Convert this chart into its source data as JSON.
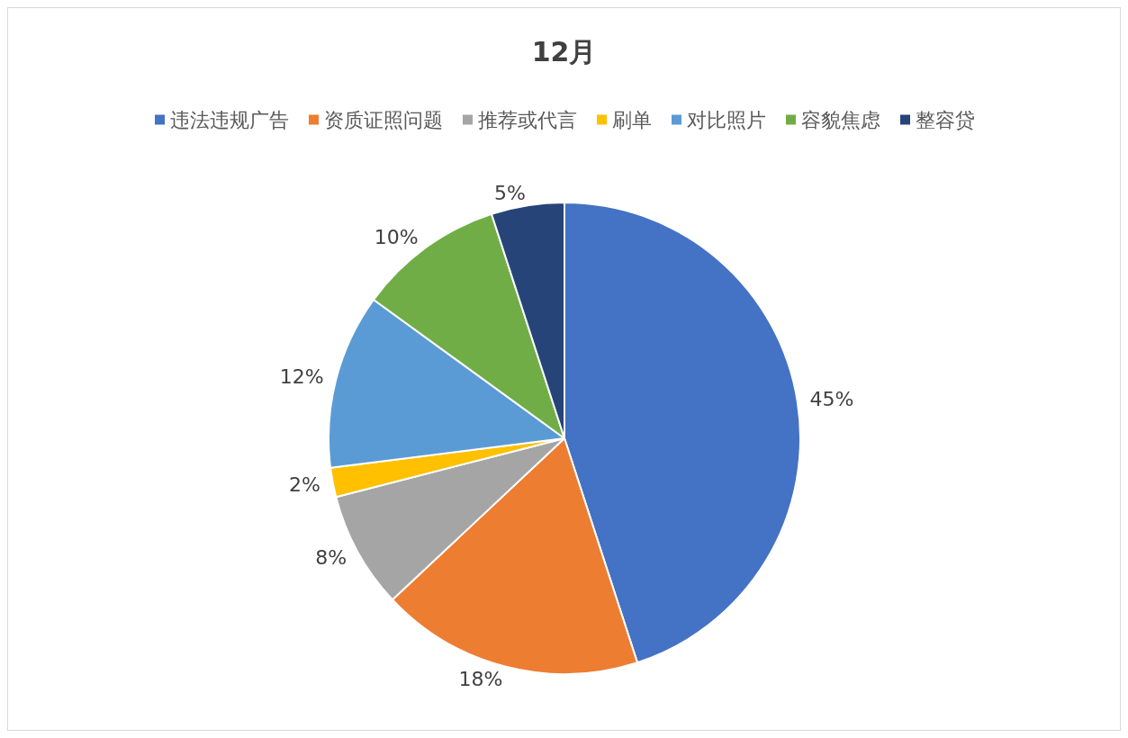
{
  "chart_data": {
    "type": "pie",
    "title": "12月",
    "categories": [
      "违法违规广告",
      "资质证照问题",
      "推荐或代言",
      "刷单",
      "对比照片",
      "容貌焦虑",
      "整容贷"
    ],
    "values": [
      45,
      18,
      8,
      2,
      12,
      10,
      5
    ],
    "colors": [
      "#4472c4",
      "#ed7d31",
      "#a5a5a5",
      "#ffc000",
      "#5b9bd5",
      "#70ad47",
      "#264478"
    ],
    "value_labels": [
      "45%",
      "18%",
      "8%",
      "2%",
      "12%",
      "10%",
      "5%"
    ],
    "legend": "top"
  }
}
